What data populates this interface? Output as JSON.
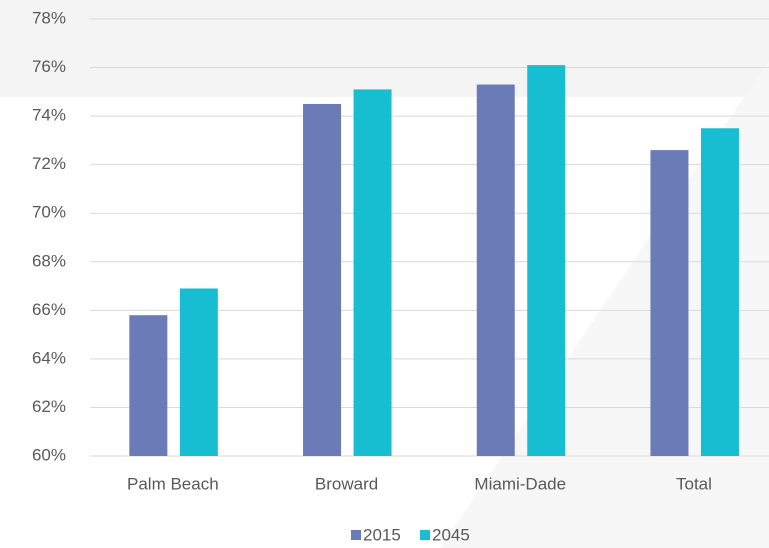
{
  "chart_data": {
    "type": "bar",
    "categories": [
      "Palm Beach",
      "Broward",
      "Miami-Dade",
      "Total"
    ],
    "series": [
      {
        "name": "2015",
        "color": "#6b7bb8",
        "values": [
          65.8,
          74.5,
          75.3,
          72.6
        ]
      },
      {
        "name": "2045",
        "color": "#17bed2",
        "values": [
          66.9,
          75.1,
          76.1,
          73.5
        ]
      }
    ],
    "ylim": [
      60,
      78
    ],
    "yticks": [
      {
        "value": 60,
        "label": "60%"
      },
      {
        "value": 62,
        "label": "62%"
      },
      {
        "value": 64,
        "label": "64%"
      },
      {
        "value": 66,
        "label": "66%"
      },
      {
        "value": 68,
        "label": "68%"
      },
      {
        "value": 70,
        "label": "70%"
      },
      {
        "value": 72,
        "label": "72%"
      },
      {
        "value": 74,
        "label": "74%"
      },
      {
        "value": 76,
        "label": "76%"
      },
      {
        "value": 78,
        "label": "78%"
      }
    ],
    "grid": true,
    "legend": "bottom"
  }
}
